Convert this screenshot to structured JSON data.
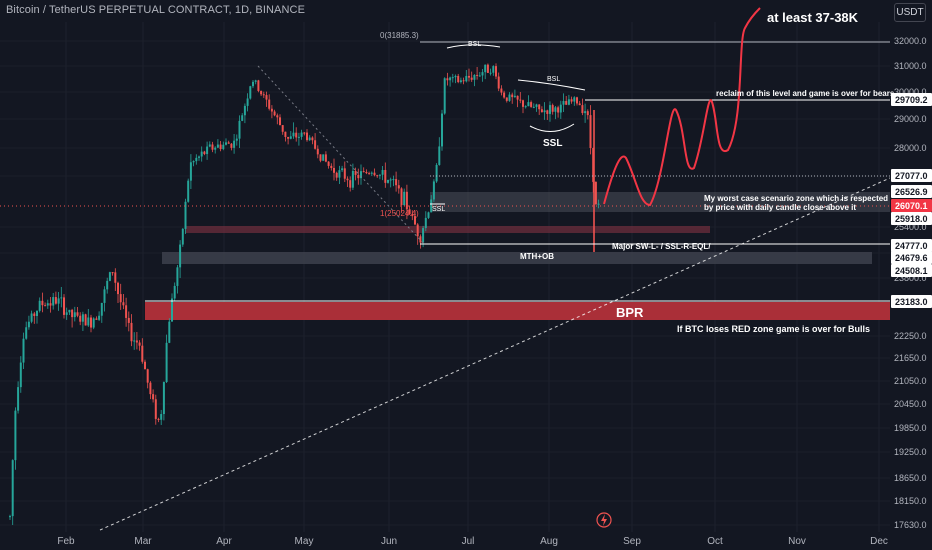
{
  "header": {
    "title": "Bitcoin / TetherUS PERPETUAL CONTRACT, 1D, BINANCE",
    "unit": "USDT"
  },
  "colors": {
    "background": "#131722",
    "up": "#26a69a",
    "down": "#ef5350",
    "red_zone": "#b2303a",
    "grey_zone": "#4a4e5a",
    "price_label": "#f23645",
    "text": "#d1d4dc",
    "white": "#ffffff"
  },
  "chart_data": {
    "type": "candlestick",
    "x_ticks": [
      "Feb",
      "Mar",
      "Apr",
      "May",
      "Jun",
      "Jul",
      "Aug",
      "Sep",
      "Oct",
      "Nov",
      "Dec"
    ],
    "y_ticks": [
      "32000.0",
      "31000.0",
      "30000.0",
      "29000.0",
      "28000.0",
      "27000.0",
      "25400.0",
      "24600.0",
      "23800.0",
      "22250.0",
      "21650.0",
      "21050.0",
      "20450.0",
      "19850.0",
      "19250.0",
      "18650.0",
      "18150.0",
      "17630.0"
    ],
    "price_labels": [
      {
        "value": "29709.2",
        "style": "white"
      },
      {
        "value": "27077.0",
        "style": "white"
      },
      {
        "value": "26526.9",
        "style": "white"
      },
      {
        "value": "26070.1",
        "style": "red"
      },
      {
        "value": "25918.0",
        "style": "white"
      },
      {
        "value": "24777.0",
        "style": "white"
      },
      {
        "value": "24679.6",
        "style": "white"
      },
      {
        "value": "24508.1",
        "style": "white"
      },
      {
        "value": "23183.0",
        "style": "white"
      }
    ],
    "candle_path_monthly": [
      {
        "month": "Jan",
        "close": 23000
      },
      {
        "month": "Feb",
        "close": 23200
      },
      {
        "month": "Mar",
        "close": 28400
      },
      {
        "month": "Apr",
        "close": 29300
      },
      {
        "month": "May",
        "close": 27200
      },
      {
        "month": "Jun",
        "close": 30500
      },
      {
        "month": "Jul",
        "close": 29200
      },
      {
        "month": "Aug",
        "close": 26070
      }
    ],
    "annotations": {
      "fib_top": "0(31885.3)",
      "fib_bottom": "1(25024.4)",
      "bsl_top": "BSL",
      "bsl_mid": "BSL",
      "ssl_mid": "SSL",
      "ssl_low": "SSL",
      "target": "at least 37-38K",
      "reclaim": "reclaim of this level and game is over for bears",
      "worst_case_1": "My worst case scenario zone which is respected",
      "worst_case_2": "by price with daily candle close above it",
      "major_level": "Major SW-L- / SSL-R-EQL/",
      "mth_ob": "MTH+OB",
      "bpr": "BPR",
      "red_zone_note": "If BTC loses RED zone game is over for Bulls"
    }
  }
}
